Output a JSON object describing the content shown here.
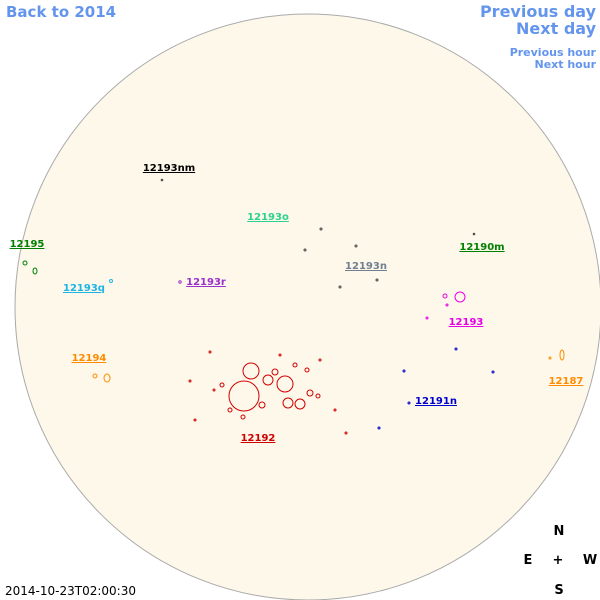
{
  "nav": {
    "back": "Back to 2014",
    "previous_day": "Previous day",
    "next_day": "Next day",
    "previous_hour": "Previous hour",
    "next_hour": "Next hour"
  },
  "regions": [
    "12193nm",
    "12193o",
    "12195",
    "12193q",
    "12193r",
    "12193n",
    "12190m",
    "12193",
    "12194",
    "12187",
    "12191n",
    "12192"
  ],
  "compass": {
    "north": "N",
    "east": "E",
    "center": "+",
    "west": "W",
    "south": "S"
  },
  "timestamp": "2014-10-23T02:00:30"
}
